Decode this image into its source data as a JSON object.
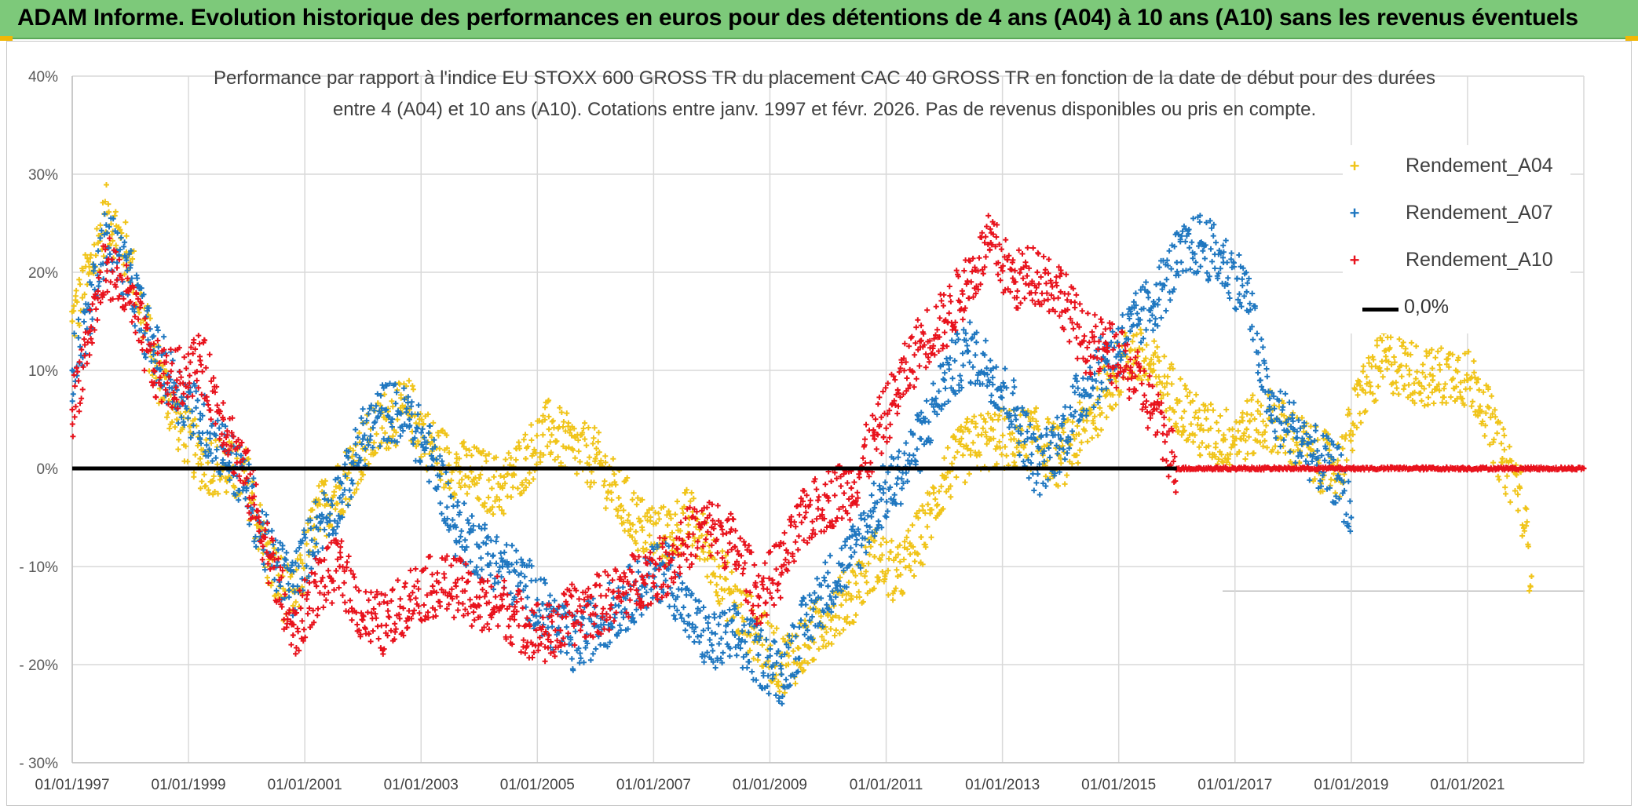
{
  "header": {
    "title": "ADAM Informe. Evolution historique des performances en euros pour des détentions de 4 ans (A04) à 10 ans (A10) sans les revenus éventuels"
  },
  "subtitle": {
    "line1": "Performance par rapport à l'indice EU STOXX 600 GROSS TR  du placement CAC 40 GROSS TR en fonction de la date de début pour des durées",
    "line2": "entre 4 (A04) et 10 ans (A10). Cotations entre janv. 1997 et févr. 2026. Pas de revenus disponibles ou pris en compte."
  },
  "legend": [
    {
      "label": "Rendement_A04",
      "color": "#f0c419",
      "type": "marker"
    },
    {
      "label": "Rendement_A07",
      "color": "#1f77c0",
      "type": "marker"
    },
    {
      "label": "Rendement_A10",
      "color": "#e8121c",
      "type": "marker"
    },
    {
      "label": "0,0%",
      "color": "#000000",
      "type": "line"
    }
  ],
  "chart_data": {
    "type": "scatter",
    "title": "Performance par rapport à l'indice EU STOXX 600 GROSS TR  du placement CAC 40 GROSS TR en fonction de la date de début pour des durées entre 4 (A04) et 10 ans (A10). Cotations entre janv. 1997 et févr. 2026. Pas de revenus disponibles ou pris en compte.",
    "xlabel": "",
    "ylabel": "",
    "xlim": [
      1997.0,
      2023.0
    ],
    "ylim": [
      -30,
      40
    ],
    "y_ticks": [
      40,
      30,
      20,
      10,
      0,
      -10,
      -20,
      -30
    ],
    "y_tick_labels": [
      "40%",
      "30%",
      "20%",
      "10%",
      "0%",
      "- 10%",
      "- 20%",
      "- 30%"
    ],
    "x_ticks": [
      1997,
      1999,
      2001,
      2003,
      2005,
      2007,
      2009,
      2011,
      2013,
      2015,
      2017,
      2019,
      2021
    ],
    "x_tick_labels": [
      "01/01/1997",
      "01/01/1999",
      "01/01/2001",
      "01/01/2003",
      "01/01/2005",
      "01/01/2007",
      "01/01/2009",
      "01/01/2011",
      "01/01/2013",
      "01/01/2015",
      "01/01/2017",
      "01/01/2019",
      "01/01/2021"
    ],
    "reference_line": {
      "label": "0,0%",
      "y": 0
    },
    "series": [
      {
        "name": "Rendement_A04",
        "color": "#f0c419",
        "x": [
          1997.0,
          1997.3,
          1997.6,
          1998.0,
          1998.4,
          1998.8,
          1999.2,
          1999.6,
          2000.0,
          2000.4,
          2000.8,
          2001.2,
          2001.6,
          2002.0,
          2002.4,
          2002.8,
          2003.2,
          2003.6,
          2004.0,
          2004.4,
          2004.8,
          2005.2,
          2005.6,
          2006.0,
          2006.4,
          2006.8,
          2007.2,
          2007.6,
          2008.0,
          2008.4,
          2008.8,
          2009.2,
          2009.6,
          2010.0,
          2010.4,
          2010.8,
          2011.2,
          2011.6,
          2012.0,
          2012.4,
          2012.8,
          2013.2,
          2013.6,
          2014.0,
          2014.4,
          2014.8,
          2015.2,
          2015.6,
          2016.0,
          2016.4,
          2016.8,
          2017.2,
          2017.6,
          2018.0,
          2018.4,
          2018.8,
          2019.2,
          2019.6,
          2020.0,
          2020.4,
          2020.8,
          2021.2,
          2021.6,
          2021.9,
          2022.1
        ],
        "values": [
          15,
          20,
          26,
          21,
          11,
          5,
          1,
          0,
          -1,
          -10,
          -14,
          -5,
          -2,
          2,
          5,
          6,
          2,
          0,
          -1,
          -2,
          1,
          4,
          2,
          1,
          -3,
          -6,
          -7,
          -5,
          -9,
          -14,
          -17,
          -20,
          -18,
          -15,
          -13,
          -9,
          -11,
          -7,
          -1,
          2,
          3,
          3,
          3,
          1,
          4,
          8,
          12,
          10,
          7,
          4,
          3,
          4,
          5,
          3,
          1,
          0,
          8,
          11,
          10,
          9,
          10,
          8,
          1,
          -2,
          -11
        ]
      },
      {
        "name": "Rendement_A07",
        "color": "#1f77c0",
        "x": [
          1997.0,
          1997.3,
          1997.6,
          1998.0,
          1998.4,
          1998.8,
          1999.2,
          1999.6,
          2000.0,
          2000.4,
          2000.8,
          2001.2,
          2001.6,
          2002.0,
          2002.4,
          2002.8,
          2003.2,
          2003.6,
          2004.0,
          2004.4,
          2004.8,
          2005.2,
          2005.6,
          2006.0,
          2006.4,
          2006.8,
          2007.2,
          2007.6,
          2008.0,
          2008.4,
          2008.8,
          2009.2,
          2009.6,
          2010.0,
          2010.4,
          2010.8,
          2011.2,
          2011.6,
          2012.0,
          2012.4,
          2012.8,
          2013.2,
          2013.6,
          2014.0,
          2014.4,
          2014.8,
          2015.2,
          2015.6,
          2016.0,
          2016.4,
          2016.8,
          2017.2,
          2017.6,
          2018.0,
          2018.4,
          2018.8,
          2019.0
        ],
        "values": [
          10,
          16,
          24,
          19,
          12,
          8,
          5,
          2,
          -2,
          -9,
          -12,
          -6,
          -3,
          3,
          6,
          5,
          1,
          -6,
          -8,
          -10,
          -12,
          -15,
          -18,
          -16,
          -14,
          -12,
          -10,
          -15,
          -18,
          -17,
          -19,
          -21,
          -16,
          -12,
          -9,
          -4,
          -1,
          3,
          9,
          12,
          10,
          6,
          0,
          3,
          8,
          11,
          14,
          17,
          21,
          23,
          21,
          18,
          6,
          4,
          1,
          -1,
          -5
        ]
      },
      {
        "name": "Rendement_A10",
        "color": "#e8121c",
        "x": [
          1997.0,
          1997.3,
          1997.6,
          1998.0,
          1998.4,
          1998.8,
          1999.2,
          1999.6,
          2000.0,
          2000.4,
          2000.8,
          2001.2,
          2001.6,
          2002.0,
          2002.4,
          2002.8,
          2003.2,
          2003.6,
          2004.0,
          2004.4,
          2004.8,
          2005.2,
          2005.6,
          2006.0,
          2006.4,
          2006.8,
          2007.2,
          2007.6,
          2008.0,
          2008.4,
          2008.8,
          2009.2,
          2009.6,
          2010.0,
          2010.4,
          2010.8,
          2011.2,
          2011.6,
          2012.0,
          2012.4,
          2012.8,
          2013.2,
          2013.6,
          2014.0,
          2014.4,
          2014.8,
          2015.2,
          2015.6,
          2016.0,
          2016.5,
          2017.0,
          2018.0,
          2019.0,
          2020.0,
          2021.0,
          2022.0,
          2023.0
        ],
        "values": [
          6,
          14,
          21,
          17,
          10,
          9,
          11,
          5,
          -1,
          -9,
          -17,
          -12,
          -10,
          -15,
          -16,
          -13,
          -12,
          -12,
          -14,
          -14,
          -16,
          -17,
          -15,
          -14,
          -13,
          -11,
          -10,
          -7,
          -6,
          -8,
          -13,
          -10,
          -5,
          -3,
          -2,
          3,
          8,
          13,
          15,
          19,
          23,
          19,
          20,
          18,
          13,
          12,
          10,
          6,
          0,
          0,
          0,
          0,
          0,
          0,
          0,
          0,
          0
        ]
      }
    ]
  }
}
